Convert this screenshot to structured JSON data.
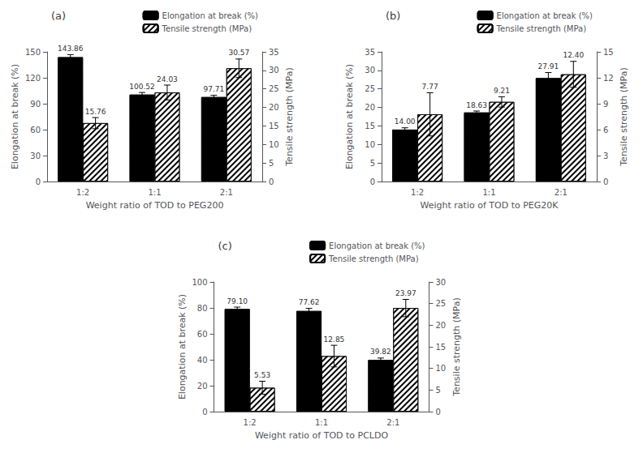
{
  "chart_data": [
    {
      "type": "bar",
      "title": "(a)",
      "xlabel": "Weight ratio of TOD to PEG200",
      "ylabel": "Elongation at break (%)",
      "y2label": "Tensile strength (MPa)",
      "categories": [
        "1:2",
        "1:1",
        "2:1"
      ],
      "series": [
        {
          "name": "Elongation at break (%)",
          "color": "#000000",
          "values": [
            143.86,
            100.52,
            97.71
          ],
          "errors": [
            3.0,
            2.5,
            2.0
          ],
          "value_labels": [
            "143.86",
            "100.52",
            "97.71"
          ]
        },
        {
          "name": "Tensile strength (MPa)",
          "color": "#ffffff",
          "axis": "y2",
          "values": [
            15.76,
            24.03,
            30.57
          ],
          "errors": [
            1.5,
            2.0,
            2.5
          ],
          "value_labels": [
            "15.76",
            "24.03",
            "30.57"
          ]
        }
      ],
      "ylim": [
        0,
        150
      ],
      "yticks": [
        0,
        30,
        60,
        90,
        120,
        150
      ],
      "y2lim": [
        0,
        35
      ],
      "y2ticks": [
        0,
        5,
        10,
        15,
        20,
        25,
        30,
        35
      ],
      "grid": false,
      "legend": "upper right",
      "data_labels": true
    },
    {
      "type": "bar",
      "title": "(b)",
      "xlabel": "Weight ratio of TOD to PEG20K",
      "ylabel": "Elongation at break (%)",
      "y2label": "Tensile strength (MPa)",
      "categories": [
        "1:2",
        "1:1",
        "2:1"
      ],
      "series": [
        {
          "name": "Elongation at break (%)",
          "color": "#000000",
          "values": [
            14.0,
            18.63,
            27.91
          ],
          "errors": [
            0.5,
            0.4,
            1.5
          ],
          "value_labels": [
            "14.00",
            "18.63",
            "27.91"
          ]
        },
        {
          "name": "Tensile strength (MPa)",
          "color": "#ffffff",
          "axis": "y2",
          "values": [
            7.77,
            9.21,
            12.4
          ],
          "errors": [
            2.5,
            0.6,
            1.5
          ],
          "value_labels": [
            "7.77",
            "9.21",
            "12.40"
          ]
        }
      ],
      "ylim": [
        0,
        35
      ],
      "yticks": [
        0,
        5,
        10,
        15,
        20,
        25,
        30,
        35
      ],
      "y2lim": [
        0,
        15
      ],
      "y2ticks": [
        0,
        3,
        6,
        9,
        12,
        15
      ],
      "grid": false,
      "legend": "upper right",
      "data_labels": true
    },
    {
      "type": "bar",
      "title": "(c)",
      "xlabel": "Weight ratio of TOD to PCLDO",
      "ylabel": "Elongation at break (%)",
      "y2label": "Tensile strength (MPa)",
      "categories": [
        "1:2",
        "1:1",
        "2:1"
      ],
      "series": [
        {
          "name": "Elongation at break (%)",
          "color": "#000000",
          "values": [
            79.1,
            77.62,
            39.82
          ],
          "errors": [
            1.5,
            2.0,
            1.5
          ],
          "value_labels": [
            "79.10",
            "77.62",
            "39.82"
          ]
        },
        {
          "name": "Tensile strength (MPa)",
          "color": "#ffffff",
          "axis": "y2",
          "values": [
            5.53,
            12.85,
            23.97
          ],
          "errors": [
            1.5,
            2.5,
            2.0
          ],
          "value_labels": [
            "5.53",
            "12.85",
            "23.97"
          ]
        }
      ],
      "ylim": [
        0,
        100
      ],
      "yticks": [
        0,
        20,
        40,
        60,
        80,
        100
      ],
      "y2lim": [
        0,
        30
      ],
      "y2ticks": [
        0,
        5,
        10,
        15,
        20,
        25,
        30
      ],
      "grid": false,
      "legend": "upper right",
      "data_labels": true
    }
  ]
}
